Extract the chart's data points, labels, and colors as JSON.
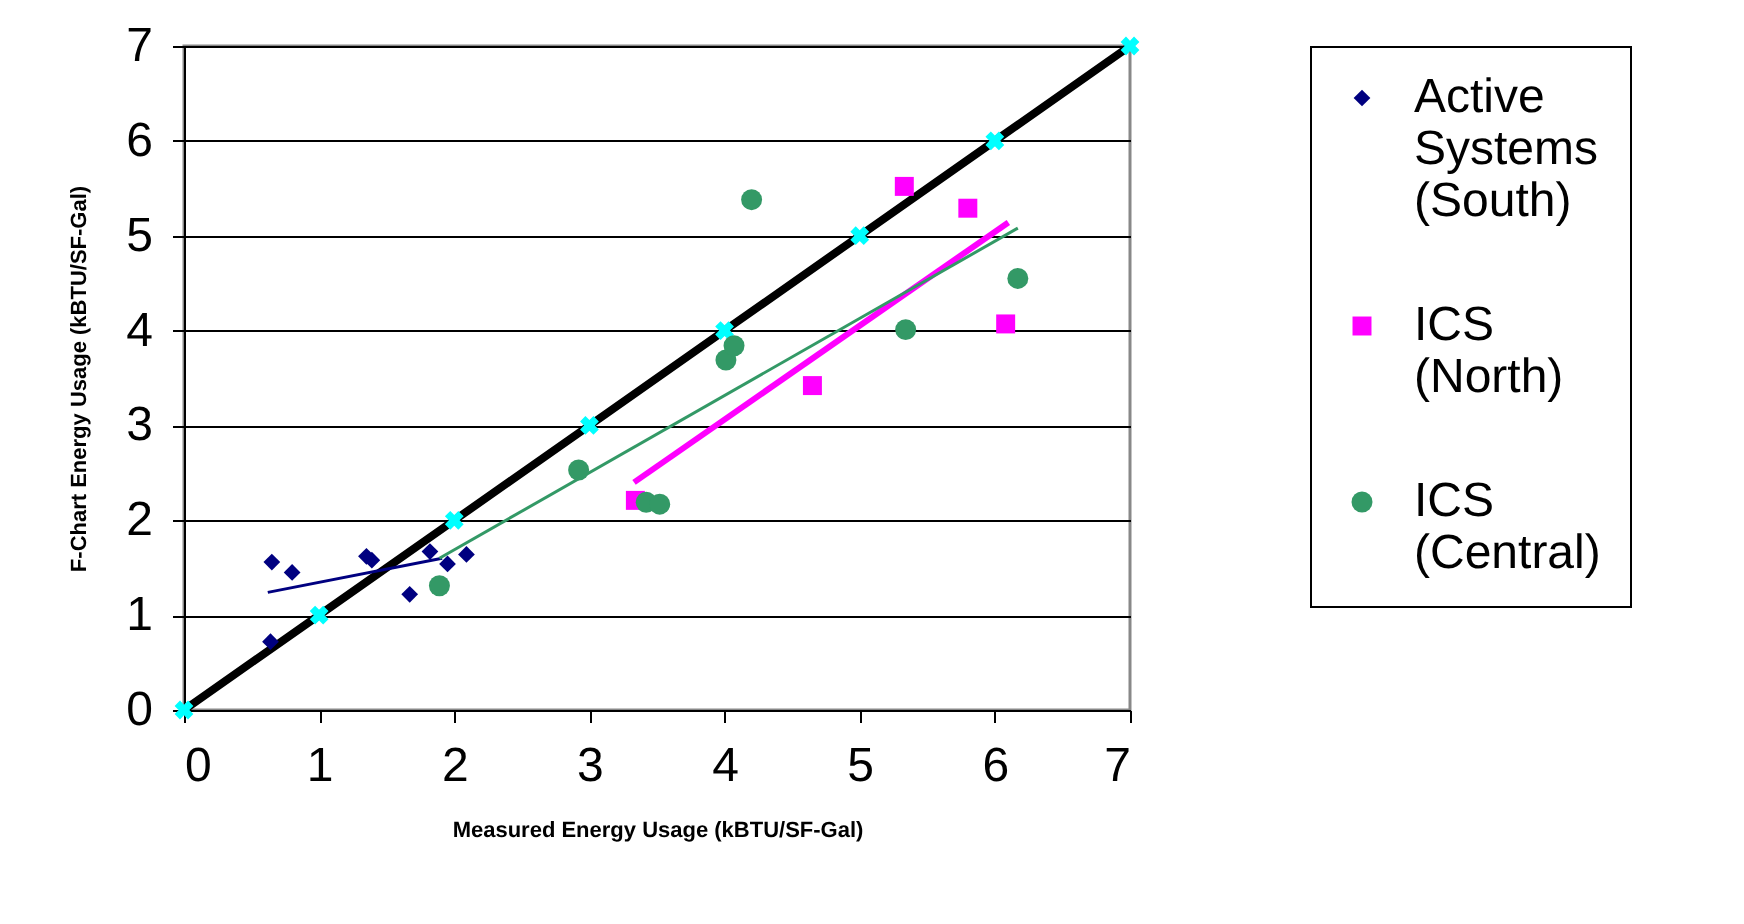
{
  "chart_data": {
    "type": "scatter",
    "xlabel": "Measured Energy Usage (kBTU/SF-Gal)",
    "ylabel": "F-Chart Energy Usage (kBTU/SF-Gal)",
    "xlim": [
      0,
      7
    ],
    "ylim": [
      0,
      7
    ],
    "xticks": [
      0,
      1,
      2,
      3,
      4,
      5,
      6,
      7
    ],
    "yticks": [
      0,
      1,
      2,
      3,
      4,
      5,
      6,
      7
    ],
    "grid": "y",
    "legend": "right",
    "series": [
      {
        "name": "Active Systems (South)",
        "color": "#000080",
        "marker": "diamond",
        "x": [
          0.64,
          0.65,
          0.8,
          1.35,
          1.39,
          1.67,
          1.82,
          1.95,
          2.09
        ],
        "values": [
          0.72,
          1.56,
          1.45,
          1.62,
          1.58,
          1.22,
          1.67,
          1.54,
          1.64
        ]
      },
      {
        "name": "ICS (North)",
        "color": "#ff00ff",
        "marker": "square",
        "x": [
          3.34,
          4.65,
          5.33,
          5.8,
          6.08
        ],
        "values": [
          2.21,
          3.42,
          5.52,
          5.29,
          4.07
        ]
      },
      {
        "name": "ICS (Central)",
        "color": "#339966",
        "marker": "circle",
        "x": [
          1.89,
          2.92,
          3.42,
          3.52,
          4.01,
          4.07,
          4.2,
          5.34,
          6.17
        ],
        "values": [
          1.31,
          2.53,
          2.19,
          2.17,
          3.69,
          3.84,
          5.38,
          4.01,
          4.55
        ]
      },
      {
        "type": "line",
        "color": "#000000",
        "marker": "cross",
        "x": [
          0,
          1,
          2,
          3,
          4,
          5,
          6,
          7
        ],
        "values": [
          0,
          1,
          2,
          3,
          4,
          5,
          6,
          7
        ]
      },
      {
        "type": "line",
        "color": "#000080",
        "marker": "none",
        "x": [
          0.62,
          1.91
        ],
        "values": [
          1.24,
          1.6
        ]
      },
      {
        "type": "line",
        "color": "#ff00ff",
        "marker": "none",
        "x": [
          3.33,
          6.1
        ],
        "values": [
          2.4,
          5.14
        ]
      },
      {
        "type": "line",
        "color": "#339966",
        "marker": "none",
        "x": [
          1.89,
          6.17
        ],
        "values": [
          1.6,
          5.08
        ]
      }
    ]
  }
}
